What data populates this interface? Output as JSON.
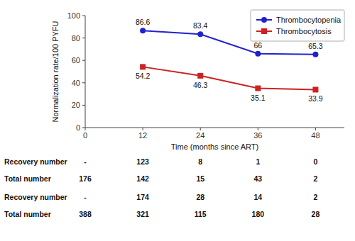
{
  "chart_data": {
    "type": "line",
    "x": [
      12,
      24,
      36,
      48
    ],
    "series": [
      {
        "name": "Thrombocytopenia",
        "color": "#2222CC",
        "marker": "circle",
        "values": [
          86.6,
          83.4,
          66.0,
          65.3
        ]
      },
      {
        "name": "Thrombocytosis",
        "color": "#CC2222",
        "marker": "square",
        "values": [
          54.2,
          46.3,
          35.1,
          33.9
        ]
      }
    ],
    "xlabel": "Time (months since ART)",
    "ylabel": "Normalization rate/100 PYFU",
    "xlim": [
      0,
      54
    ],
    "ylim": [
      0,
      100
    ],
    "xticks": [
      0,
      12,
      24,
      36,
      48
    ],
    "yticks": [
      0,
      20,
      40,
      60,
      80,
      100
    ],
    "legend": "upper right",
    "data_labels": true,
    "table": {
      "rows": [
        {
          "label": "Recovery number",
          "values": [
            "-",
            123,
            8,
            1,
            0
          ]
        },
        {
          "label": "Total number",
          "values": [
            176,
            142,
            15,
            43,
            2
          ]
        },
        {
          "label": "Recovery number",
          "values": [
            "-",
            174,
            28,
            14,
            2
          ]
        },
        {
          "label": "Total number",
          "values": [
            388,
            321,
            115,
            180,
            28
          ]
        }
      ]
    }
  }
}
